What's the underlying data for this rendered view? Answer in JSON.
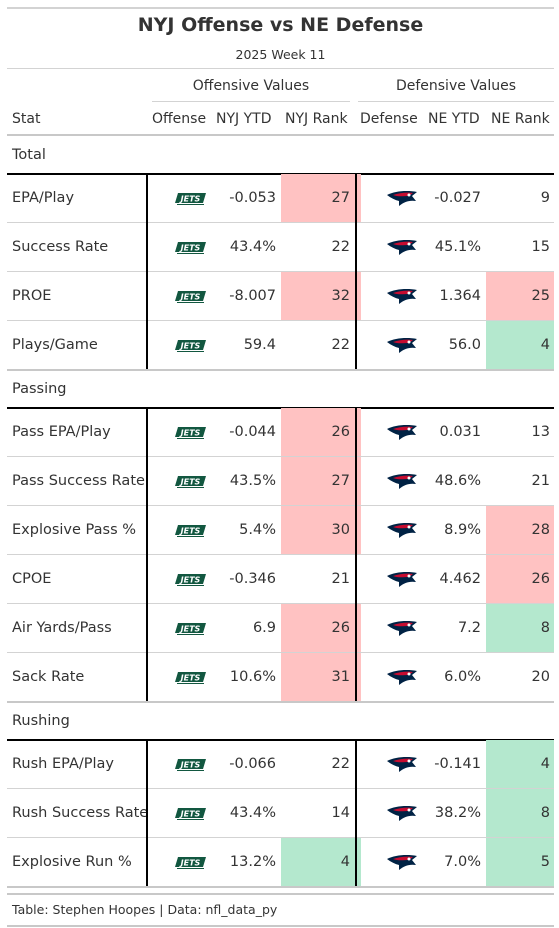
{
  "title": "NYJ Offense vs NE Defense",
  "subtitle": "2025 Week 11",
  "spanners": {
    "offense": "Offensive Values",
    "defense": "Defensive Values"
  },
  "columns": {
    "stat": "Stat",
    "offense": "Offense",
    "nyj_ytd": "NYJ YTD",
    "nyj_rank": "NYJ Rank",
    "defense": "Defense",
    "ne_ytd": "NE YTD",
    "ne_rank": "NE Rank"
  },
  "colors": {
    "bad": "#ffc2c2",
    "good": "#b4e8ce",
    "jets_green": "#125740",
    "patriots_blue": "#002244",
    "patriots_red": "#c60c30"
  },
  "groups": [
    {
      "label": "Total",
      "rows": [
        {
          "stat": "EPA/Play",
          "nyj_ytd": "-0.053",
          "nyj_rank": "27",
          "nyj_shade": "bad",
          "ne_ytd": "-0.027",
          "ne_rank": "9",
          "ne_shade": ""
        },
        {
          "stat": "Success Rate",
          "nyj_ytd": "43.4%",
          "nyj_rank": "22",
          "nyj_shade": "",
          "ne_ytd": "45.1%",
          "ne_rank": "15",
          "ne_shade": ""
        },
        {
          "stat": "PROE",
          "nyj_ytd": "-8.007",
          "nyj_rank": "32",
          "nyj_shade": "bad",
          "ne_ytd": "1.364",
          "ne_rank": "25",
          "ne_shade": "bad"
        },
        {
          "stat": "Plays/Game",
          "nyj_ytd": "59.4",
          "nyj_rank": "22",
          "nyj_shade": "",
          "ne_ytd": "56.0",
          "ne_rank": "4",
          "ne_shade": "good"
        }
      ]
    },
    {
      "label": "Passing",
      "rows": [
        {
          "stat": "Pass EPA/Play",
          "nyj_ytd": "-0.044",
          "nyj_rank": "26",
          "nyj_shade": "bad",
          "ne_ytd": "0.031",
          "ne_rank": "13",
          "ne_shade": ""
        },
        {
          "stat": "Pass Success Rate",
          "nyj_ytd": "43.5%",
          "nyj_rank": "27",
          "nyj_shade": "bad",
          "ne_ytd": "48.6%",
          "ne_rank": "21",
          "ne_shade": ""
        },
        {
          "stat": "Explosive Pass %",
          "nyj_ytd": "5.4%",
          "nyj_rank": "30",
          "nyj_shade": "bad",
          "ne_ytd": "8.9%",
          "ne_rank": "28",
          "ne_shade": "bad"
        },
        {
          "stat": "CPOE",
          "nyj_ytd": "-0.346",
          "nyj_rank": "21",
          "nyj_shade": "",
          "ne_ytd": "4.462",
          "ne_rank": "26",
          "ne_shade": "bad"
        },
        {
          "stat": "Air Yards/Pass",
          "nyj_ytd": "6.9",
          "nyj_rank": "26",
          "nyj_shade": "bad",
          "ne_ytd": "7.2",
          "ne_rank": "8",
          "ne_shade": "good"
        },
        {
          "stat": "Sack Rate",
          "nyj_ytd": "10.6%",
          "nyj_rank": "31",
          "nyj_shade": "bad",
          "ne_ytd": "6.0%",
          "ne_rank": "20",
          "ne_shade": ""
        }
      ]
    },
    {
      "label": "Rushing",
      "rows": [
        {
          "stat": "Rush EPA/Play",
          "nyj_ytd": "-0.066",
          "nyj_rank": "22",
          "nyj_shade": "",
          "ne_ytd": "-0.141",
          "ne_rank": "4",
          "ne_shade": "good"
        },
        {
          "stat": "Rush Success Rate",
          "nyj_ytd": "43.4%",
          "nyj_rank": "14",
          "nyj_shade": "",
          "ne_ytd": "38.2%",
          "ne_rank": "8",
          "ne_shade": "good"
        },
        {
          "stat": "Explosive Run %",
          "nyj_ytd": "13.2%",
          "nyj_rank": "4",
          "nyj_shade": "good",
          "ne_ytd": "7.0%",
          "ne_rank": "5",
          "ne_shade": "good"
        }
      ]
    }
  ],
  "logos": {
    "offense": "jets-logo",
    "defense": "patriots-logo"
  },
  "source": "Table: Stephen Hoopes | Data: nfl_data_py"
}
